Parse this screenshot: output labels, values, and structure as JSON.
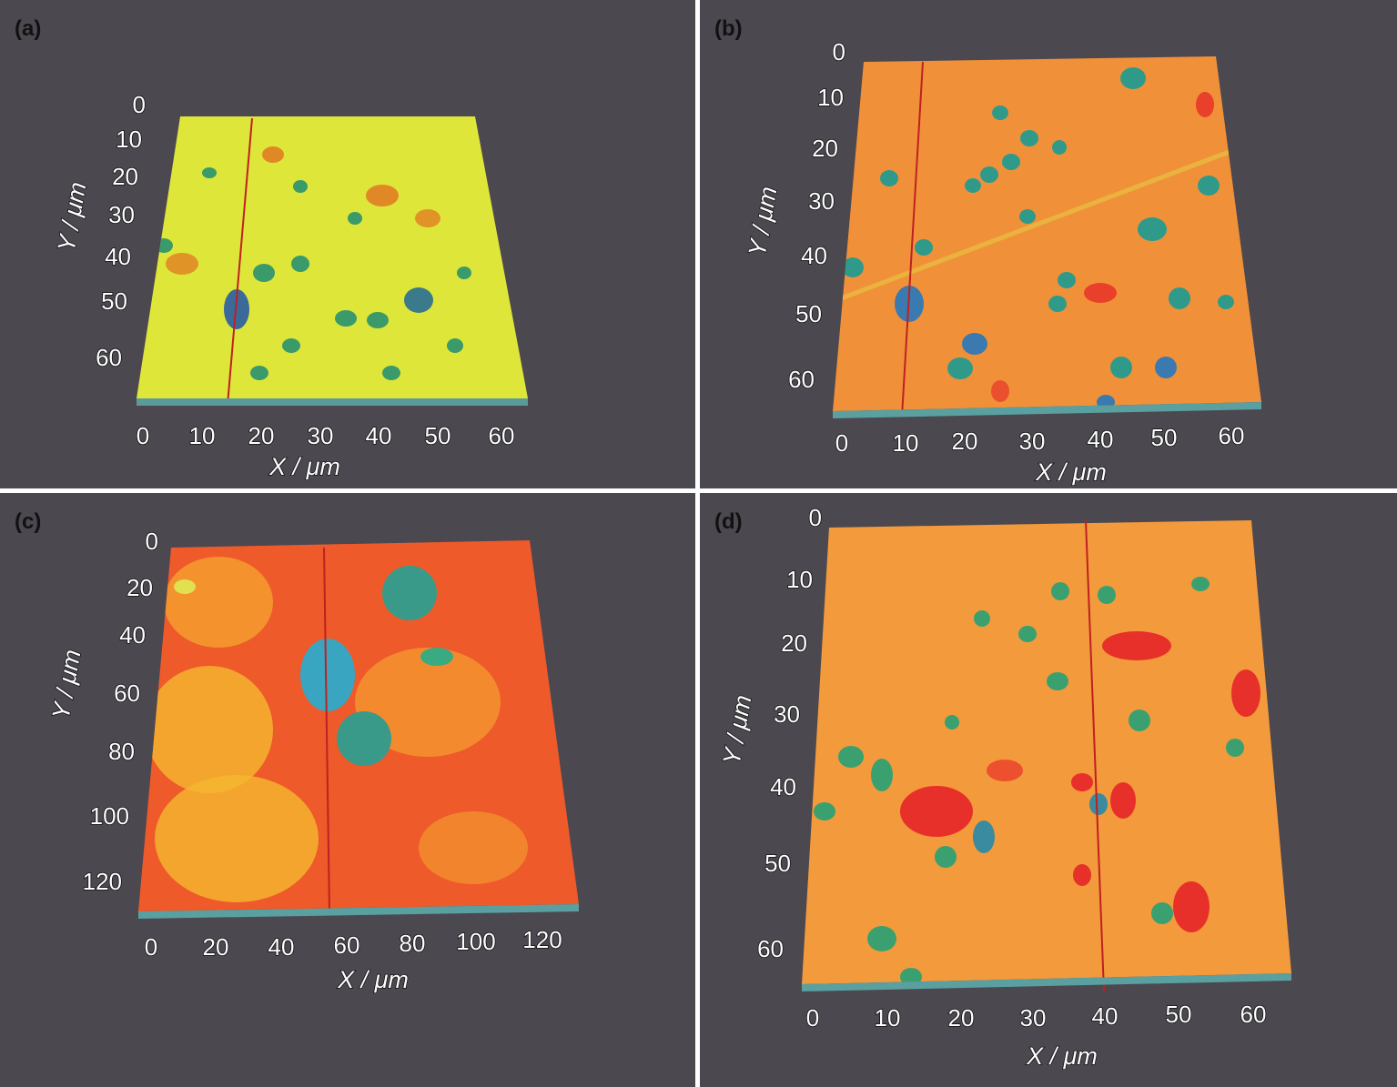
{
  "panels": [
    {
      "label": "(a)",
      "xlabel": "X / μm",
      "ylabel": "Y / μm",
      "xticks": [
        "0",
        "10",
        "20",
        "30",
        "40",
        "50",
        "60"
      ],
      "yticks": [
        "0",
        "10",
        "20",
        "30",
        "40",
        "50",
        "60"
      ],
      "colors": {
        "base": "#dfe63a",
        "pit": "#3a9a6a",
        "hot": "#e07020"
      }
    },
    {
      "label": "(b)",
      "xlabel": "X / μm",
      "ylabel": "Y / μm",
      "xticks": [
        "0",
        "10",
        "20",
        "30",
        "40",
        "50",
        "60"
      ],
      "yticks": [
        "0",
        "10",
        "20",
        "30",
        "40",
        "50",
        "60"
      ],
      "colors": {
        "base": "#f0913a",
        "pit": "#2f9a8a",
        "hot": "#e8402a"
      }
    },
    {
      "label": "(c)",
      "xlabel": "X / μm",
      "ylabel": "Y / μm",
      "xticks": [
        "0",
        "20",
        "40",
        "60",
        "80",
        "100",
        "120"
      ],
      "yticks": [
        "0",
        "20",
        "40",
        "60",
        "80",
        "100",
        "120"
      ],
      "colors": {
        "base": "#ee5a2a",
        "pit": "#3aa5c0",
        "hot": "#f5b830"
      }
    },
    {
      "label": "(d)",
      "xlabel": "X / μm",
      "ylabel": "Y / μm",
      "xticks": [
        "0",
        "10",
        "20",
        "30",
        "40",
        "50",
        "60"
      ],
      "yticks": [
        "0",
        "10",
        "20",
        "30",
        "40",
        "50",
        "60"
      ],
      "colors": {
        "base": "#f39a3c",
        "pit": "#3aa070",
        "hot": "#e8302a"
      }
    }
  ]
}
